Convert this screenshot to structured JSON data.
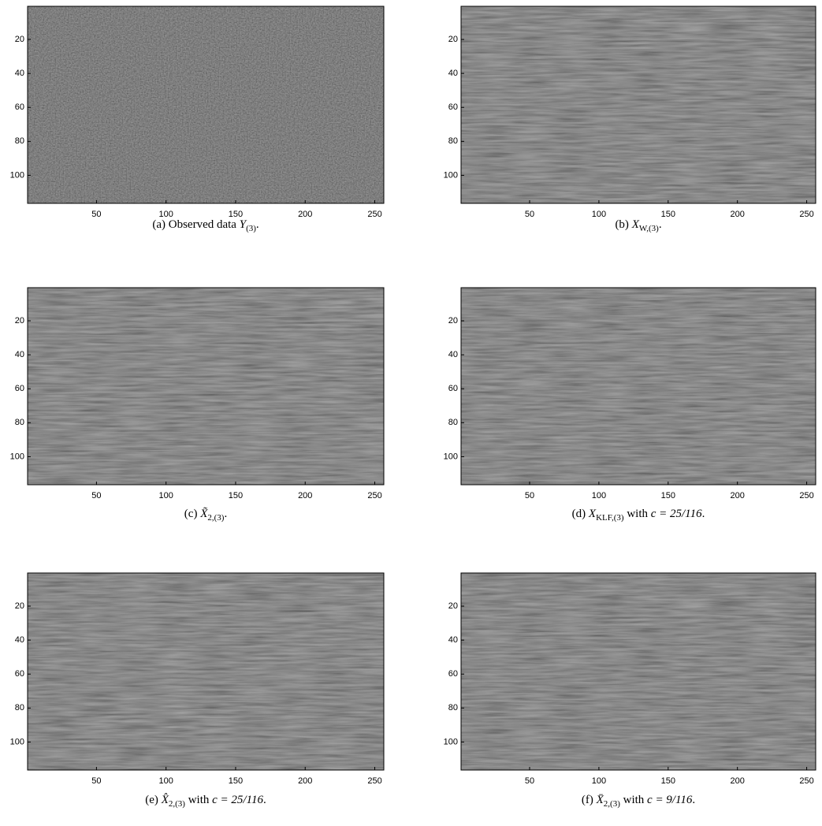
{
  "panels": [
    {
      "caption": [
        {
          "text": "(a) Observed data "
        },
        {
          "math": "Y"
        },
        {
          "sub": "(3)"
        },
        {
          "text": "."
        }
      ],
      "xlim": [
        0.5,
        256.5
      ],
      "ylim": [
        0.5,
        116.5
      ],
      "xticks": [
        50,
        100,
        150,
        200,
        250
      ],
      "yticks": [
        20,
        40,
        60,
        80,
        100
      ]
    },
    {
      "caption": [
        {
          "text": "(b) "
        },
        {
          "math": "X"
        },
        {
          "sub": "W,(3)"
        },
        {
          "text": "."
        }
      ],
      "xlim": [
        0.5,
        256.5
      ],
      "ylim": [
        0.5,
        116.5
      ],
      "xticks": [
        50,
        100,
        150,
        200,
        250
      ],
      "yticks": [
        20,
        40,
        60,
        80,
        100
      ]
    },
    {
      "caption": [
        {
          "text": "(c) "
        },
        {
          "math": "X̃"
        },
        {
          "sub": "2,(3)"
        },
        {
          "text": "."
        }
      ],
      "xlim": [
        0.5,
        256.5
      ],
      "ylim": [
        0.5,
        116.5
      ],
      "xticks": [
        50,
        100,
        150,
        200,
        250
      ],
      "yticks": [
        20,
        40,
        60,
        80,
        100
      ]
    },
    {
      "caption": [
        {
          "text": "(d) "
        },
        {
          "math": "X"
        },
        {
          "sub": "KLF,(3)"
        },
        {
          "text": " with "
        },
        {
          "math": "c = 25/116"
        },
        {
          "text": "."
        }
      ],
      "xlim": [
        0.5,
        256.5
      ],
      "ylim": [
        0.5,
        116.5
      ],
      "xticks": [
        50,
        100,
        150,
        200,
        250
      ],
      "yticks": [
        20,
        40,
        60,
        80,
        100
      ]
    },
    {
      "caption": [
        {
          "text": "(e) "
        },
        {
          "math": "X̂"
        },
        {
          "sub": "2,(3)"
        },
        {
          "text": " with "
        },
        {
          "math": "c = 25/116"
        },
        {
          "text": "."
        }
      ],
      "xlim": [
        0.5,
        256.5
      ],
      "ylim": [
        0.5,
        116.5
      ],
      "xticks": [
        50,
        100,
        150,
        200,
        250
      ],
      "yticks": [
        20,
        40,
        60,
        80,
        100
      ]
    },
    {
      "caption": [
        {
          "text": "(f) "
        },
        {
          "math": "X̄"
        },
        {
          "sub": "2,(3)"
        },
        {
          "text": " with "
        },
        {
          "math": "c = 9/116"
        },
        {
          "text": "."
        }
      ],
      "xlim": [
        0.5,
        256.5
      ],
      "ylim": [
        0.5,
        116.5
      ],
      "xticks": [
        50,
        100,
        150,
        200,
        250
      ],
      "yticks": [
        20,
        40,
        60,
        80,
        100
      ]
    }
  ]
}
